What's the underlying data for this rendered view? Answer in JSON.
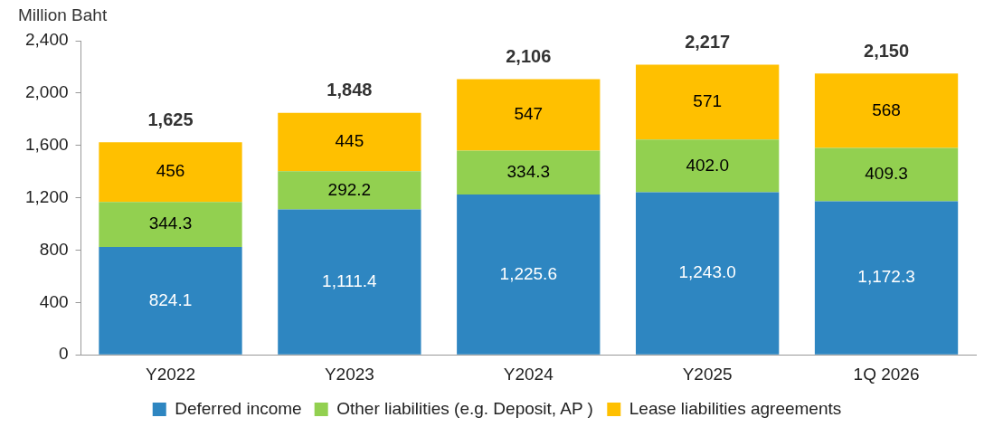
{
  "chart_data": {
    "type": "bar",
    "ylabel": "Million Baht",
    "categories": [
      "Y2022",
      "Y2023",
      "Y2024",
      "Y2025",
      "1Q 2026"
    ],
    "stacked": true,
    "ylim": [
      0,
      2400
    ],
    "yticks": [
      0,
      400,
      800,
      {
        "value": 1200,
        "label": "1,200"
      },
      {
        "value": 1600,
        "label": "1,600"
      },
      {
        "value": 2000,
        "label": "2,000"
      },
      {
        "value": 2400,
        "label": "2,400"
      }
    ],
    "grid": false,
    "legend": "bottom",
    "series": [
      {
        "name": "Deferred income",
        "color": "#2e86c1",
        "values": [
          824.1,
          1111.4,
          1225.6,
          1243.0,
          1172.3
        ],
        "value_labels": [
          "824.1",
          "1,111.4",
          "1,225.6",
          "1,243.0",
          "1,172.3"
        ]
      },
      {
        "name": "Other liabilities (e.g. Deposit, AP )",
        "color": "#92d050",
        "values": [
          344.3,
          292.2,
          334.3,
          402.0,
          409.3
        ],
        "value_labels": [
          "344.3",
          "292.2",
          "334.3",
          "402.0",
          "409.3"
        ]
      },
      {
        "name": "Lease liabilities agreements",
        "color": "#ffc000",
        "values": [
          456,
          445,
          547,
          571,
          568
        ],
        "value_labels": [
          "456",
          "445",
          "547",
          "571",
          "568"
        ]
      }
    ],
    "totals": [
      "1,625",
      "1,848",
      "2,106",
      "2,217",
      "2,150"
    ]
  }
}
